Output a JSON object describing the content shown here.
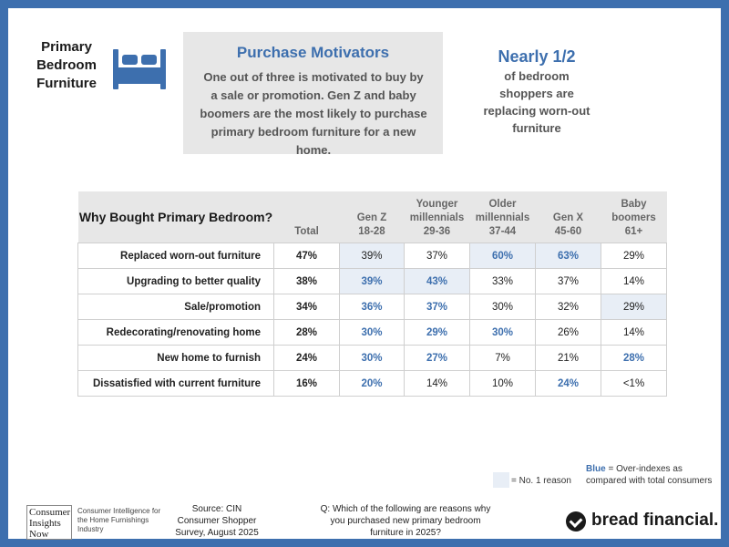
{
  "header": {
    "left_title": "Primary Bedroom Furniture",
    "icon": "bed-icon"
  },
  "motivators": {
    "title": "Purchase Motivators",
    "text": "One out of three is motivated to buy by a sale or promotion. Gen Z and baby boomers are the most likely to purchase primary bedroom furniture for a new home."
  },
  "highlight": {
    "title": "Nearly 1/2",
    "text": "of bedroom shoppers are replacing worn-out furniture"
  },
  "table": {
    "question_header": "Why Bought Primary Bedroom?",
    "columns": [
      {
        "name": "Total",
        "sub": ""
      },
      {
        "name": "Gen Z",
        "sub": "18-28"
      },
      {
        "name": "Younger millennials",
        "sub": "29-36"
      },
      {
        "name": "Older millennials",
        "sub": "37-44"
      },
      {
        "name": "Gen X",
        "sub": "45-60"
      },
      {
        "name": "Baby boomers",
        "sub": "61+"
      }
    ],
    "rows": [
      {
        "label": "Replaced worn-out furniture",
        "cells": [
          {
            "v": "47%",
            "blue": false,
            "shade": false
          },
          {
            "v": "39%",
            "blue": false,
            "shade": true
          },
          {
            "v": "37%",
            "blue": false,
            "shade": false
          },
          {
            "v": "60%",
            "blue": true,
            "shade": true
          },
          {
            "v": "63%",
            "blue": true,
            "shade": true
          },
          {
            "v": "29%",
            "blue": false,
            "shade": false
          }
        ]
      },
      {
        "label": "Upgrading to better quality",
        "cells": [
          {
            "v": "38%",
            "blue": false,
            "shade": false
          },
          {
            "v": "39%",
            "blue": true,
            "shade": true
          },
          {
            "v": "43%",
            "blue": true,
            "shade": true
          },
          {
            "v": "33%",
            "blue": false,
            "shade": false
          },
          {
            "v": "37%",
            "blue": false,
            "shade": false
          },
          {
            "v": "14%",
            "blue": false,
            "shade": false
          }
        ]
      },
      {
        "label": "Sale/promotion",
        "cells": [
          {
            "v": "34%",
            "blue": false,
            "shade": false
          },
          {
            "v": "36%",
            "blue": true,
            "shade": false
          },
          {
            "v": "37%",
            "blue": true,
            "shade": false
          },
          {
            "v": "30%",
            "blue": false,
            "shade": false
          },
          {
            "v": "32%",
            "blue": false,
            "shade": false
          },
          {
            "v": "29%",
            "blue": false,
            "shade": true
          }
        ]
      },
      {
        "label": "Redecorating/renovating home",
        "cells": [
          {
            "v": "28%",
            "blue": false,
            "shade": false
          },
          {
            "v": "30%",
            "blue": true,
            "shade": false
          },
          {
            "v": "29%",
            "blue": true,
            "shade": false
          },
          {
            "v": "30%",
            "blue": true,
            "shade": false
          },
          {
            "v": "26%",
            "blue": false,
            "shade": false
          },
          {
            "v": "14%",
            "blue": false,
            "shade": false
          }
        ]
      },
      {
        "label": "New home to furnish",
        "cells": [
          {
            "v": "24%",
            "blue": false,
            "shade": false
          },
          {
            "v": "30%",
            "blue": true,
            "shade": false
          },
          {
            "v": "27%",
            "blue": true,
            "shade": false
          },
          {
            "v": "7%",
            "blue": false,
            "shade": false
          },
          {
            "v": "21%",
            "blue": false,
            "shade": false
          },
          {
            "v": "28%",
            "blue": true,
            "shade": false
          }
        ]
      },
      {
        "label": "Dissatisfied with current furniture",
        "cells": [
          {
            "v": "16%",
            "blue": false,
            "shade": false
          },
          {
            "v": "20%",
            "blue": true,
            "shade": false
          },
          {
            "v": "14%",
            "blue": false,
            "shade": false
          },
          {
            "v": "10%",
            "blue": false,
            "shade": false
          },
          {
            "v": "24%",
            "blue": true,
            "shade": false
          },
          {
            "v": "<1%",
            "blue": false,
            "shade": false
          }
        ]
      }
    ]
  },
  "legend": {
    "blue_word": "Blue",
    "blue_text_1": " = Over-indexes as",
    "blue_text_2": "compared with total consumers",
    "no1_text": "= No. 1 reason"
  },
  "footer": {
    "cin_logo_big": "Consumer Insights Now",
    "cin_logo_small": "Consumer Intelligence for the Home Furnishings Industry",
    "source": "Source: CIN Consumer Shopper Survey, August 2025",
    "question": "Q: Which of the following are reasons why you purchased new primary bedroom furniture in 2025?",
    "brand": "bread financial."
  },
  "colors": {
    "accent": "#3d6fae",
    "shade": "#e8eef6",
    "panel": "#e7e7e7"
  }
}
